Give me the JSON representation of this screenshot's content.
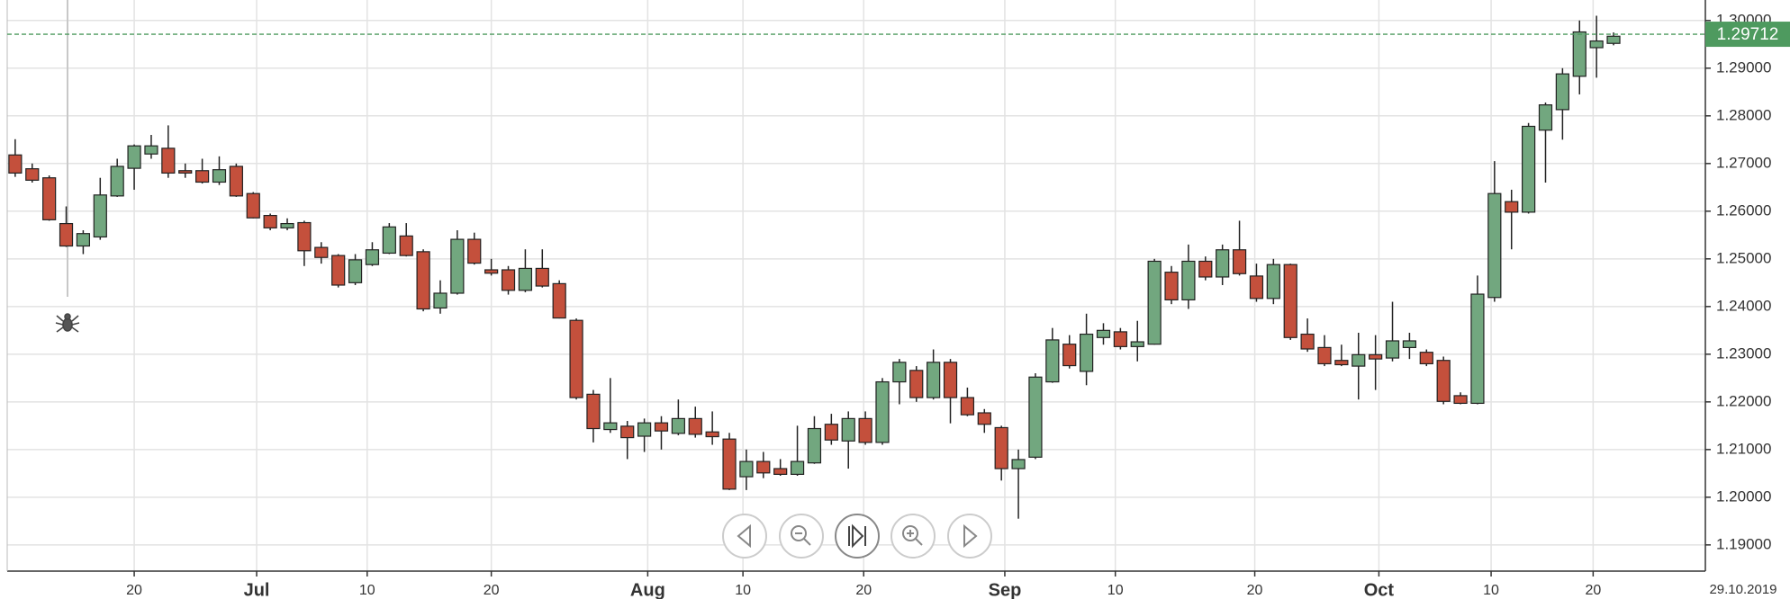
{
  "chart_data": {
    "type": "candlestick",
    "open": [
      1.2718,
      1.2689,
      1.267,
      1.2574,
      1.2527,
      1.2546,
      1.2632,
      1.269,
      1.272,
      1.2732,
      1.2685,
      1.2685,
      1.2661,
      1.2694,
      1.2637,
      1.2591,
      1.2565,
      1.2576,
      1.2524,
      1.2507,
      1.245,
      1.2488,
      1.2512,
      1.2548,
      1.2515,
      1.2397,
      1.2428,
      1.2541,
      1.2477,
      1.2477,
      1.2434,
      1.248,
      1.2448,
      1.2371,
      1.2216,
      1.2142,
      1.2149,
      1.2128,
      1.2156,
      1.2134,
      1.2165,
      1.2137,
      1.2122,
      1.2043,
      1.2075,
      1.206,
      1.2048,
      1.2072,
      1.2153,
      1.2118,
      1.2165,
      1.2115,
      1.2242,
      1.2266,
      1.2209,
      1.2283,
      1.2209,
      1.2177,
      1.2146,
      1.206,
      1.2084,
      1.2242,
      1.2321,
      1.2264,
      1.2335,
      1.2347,
      1.2316,
      1.2321,
      1.2472,
      1.2414,
      1.2495,
      1.2462,
      1.2519,
      1.2464,
      1.2417,
      1.2488,
      1.2342,
      1.2314,
      1.2287,
      1.2275,
      1.2299,
      1.2292,
      1.2314,
      1.2304,
      1.2287,
      1.2213,
      1.2197,
      1.2419,
      1.262,
      1.2598,
      1.277,
      1.2813,
      1.2883,
      1.2943,
      1.2952
    ],
    "high": [
      1.2751,
      1.27,
      1.2675,
      1.261,
      1.256,
      1.267,
      1.271,
      1.274,
      1.276,
      1.278,
      1.27,
      1.271,
      1.2715,
      1.27,
      1.264,
      1.2595,
      1.2585,
      1.258,
      1.2535,
      1.251,
      1.251,
      1.2535,
      1.2575,
      1.2575,
      1.252,
      1.2455,
      1.256,
      1.2555,
      1.25,
      1.2485,
      1.252,
      1.252,
      1.2455,
      1.2375,
      1.2225,
      1.225,
      1.216,
      1.2165,
      1.217,
      1.2205,
      1.219,
      1.218,
      1.2135,
      1.21,
      1.2095,
      1.208,
      1.215,
      1.217,
      1.2175,
      1.218,
      1.218,
      1.225,
      1.229,
      1.2275,
      1.231,
      1.229,
      1.223,
      1.2185,
      1.215,
      1.21,
      1.226,
      1.2355,
      1.234,
      1.2385,
      1.2365,
      1.2355,
      1.237,
      1.25,
      1.2485,
      1.253,
      1.2505,
      1.253,
      1.258,
      1.249,
      1.25,
      1.249,
      1.2375,
      1.234,
      1.232,
      1.2345,
      1.234,
      1.241,
      1.2345,
      1.231,
      1.2295,
      1.222,
      1.2465,
      1.2705,
      1.2645,
      1.2785,
      1.2828,
      1.29,
      1.3,
      1.301,
      1.2975
    ],
    "low": [
      1.2672,
      1.266,
      1.258,
      1.2525,
      1.251,
      1.254,
      1.263,
      1.2645,
      1.271,
      1.267,
      1.267,
      1.2658,
      1.2655,
      1.263,
      1.2585,
      1.256,
      1.256,
      1.2485,
      1.249,
      1.244,
      1.2445,
      1.2485,
      1.251,
      1.2505,
      1.239,
      1.2385,
      1.2425,
      1.2488,
      1.2465,
      1.2425,
      1.243,
      1.244,
      1.2375,
      1.2205,
      1.2115,
      1.2135,
      1.208,
      1.2095,
      1.21,
      1.213,
      1.2125,
      1.211,
      1.2015,
      1.2015,
      1.204,
      1.2045,
      1.2045,
      1.207,
      1.211,
      1.206,
      1.211,
      1.211,
      1.2195,
      1.22,
      1.2205,
      1.2155,
      1.217,
      1.2135,
      1.2035,
      1.1955,
      1.208,
      1.224,
      1.227,
      1.2235,
      1.232,
      1.231,
      1.2285,
      1.232,
      1.2405,
      1.2395,
      1.2455,
      1.2445,
      1.2465,
      1.241,
      1.2405,
      1.233,
      1.2305,
      1.2275,
      1.2275,
      1.2205,
      1.2225,
      1.2285,
      1.229,
      1.2275,
      1.2195,
      1.2195,
      1.2195,
      1.241,
      1.252,
      1.2595,
      1.266,
      1.275,
      1.2845,
      1.288,
      1.2948
    ],
    "close": [
      1.268,
      1.2665,
      1.2582,
      1.2527,
      1.2553,
      1.2634,
      1.2694,
      1.2737,
      1.2737,
      1.268,
      1.268,
      1.2661,
      1.2687,
      1.2632,
      1.2586,
      1.2565,
      1.2574,
      1.2517,
      1.2503,
      1.2445,
      1.2498,
      1.2519,
      1.2567,
      1.2507,
      1.2395,
      1.2428,
      1.2541,
      1.2491,
      1.247,
      1.2434,
      1.248,
      1.2443,
      1.2376,
      1.2209,
      1.2144,
      1.2156,
      1.2125,
      1.2156,
      1.2139,
      1.2165,
      1.2132,
      1.2127,
      1.2017,
      1.2075,
      1.2051,
      1.2048,
      1.2075,
      1.2144,
      1.212,
      1.2165,
      1.2115,
      1.2242,
      1.2283,
      1.2209,
      1.2283,
      1.2209,
      1.2173,
      1.2153,
      1.206,
      1.2079,
      1.2252,
      1.233,
      1.2276,
      1.2342,
      1.235,
      1.2316,
      1.2326,
      1.2495,
      1.2414,
      1.2495,
      1.2462,
      1.2519,
      1.2469,
      1.2417,
      1.2488,
      1.2335,
      1.2311,
      1.228,
      1.2278,
      1.2299,
      1.229,
      1.2328,
      1.2328,
      1.228,
      1.2201,
      1.2197,
      1.2426,
      1.2637,
      1.2598,
      1.2778,
      1.2823,
      1.2888,
      1.2976,
      1.2957,
      1.2967
    ],
    "up_color": "#72a77f",
    "down_color": "#c4503c",
    "last_price": 1.29712,
    "last_price_color": "#4e9a5f",
    "date_label": "29.10.2019",
    "xlim": [
      -0.47,
      99.4
    ],
    "xticks": [
      {
        "value": 7.0,
        "label": "20"
      },
      {
        "value": 14.2,
        "label": "Jul"
      },
      {
        "value": 20.7,
        "label": "10"
      },
      {
        "value": 28.0,
        "label": "20"
      },
      {
        "value": 37.2,
        "label": "Aug"
      },
      {
        "value": 42.8,
        "label": "10"
      },
      {
        "value": 49.9,
        "label": "20"
      },
      {
        "value": 58.2,
        "label": "Sep"
      },
      {
        "value": 64.7,
        "label": "10"
      },
      {
        "value": 72.9,
        "label": "20"
      },
      {
        "value": 80.2,
        "label": "Oct"
      },
      {
        "value": 86.8,
        "label": "10"
      },
      {
        "value": 92.8,
        "label": "20"
      }
    ],
    "ylim": [
      1.1845,
      1.3043
    ],
    "yticks": [
      {
        "value": 1.19,
        "label": "1.19000"
      },
      {
        "value": 1.2,
        "label": "1.20000"
      },
      {
        "value": 1.21,
        "label": "1.21000"
      },
      {
        "value": 1.22,
        "label": "1.22000"
      },
      {
        "value": 1.23,
        "label": "1.23000"
      },
      {
        "value": 1.24,
        "label": "1.24000"
      },
      {
        "value": 1.25,
        "label": "1.25000"
      },
      {
        "value": 1.26,
        "label": "1.26000"
      },
      {
        "value": 1.27,
        "label": "1.27000"
      },
      {
        "value": 1.28,
        "label": "1.28000"
      },
      {
        "value": 1.29,
        "label": "1.29000"
      },
      {
        "value": 1.3,
        "label": "1.30000"
      }
    ],
    "grid": true
  }
}
